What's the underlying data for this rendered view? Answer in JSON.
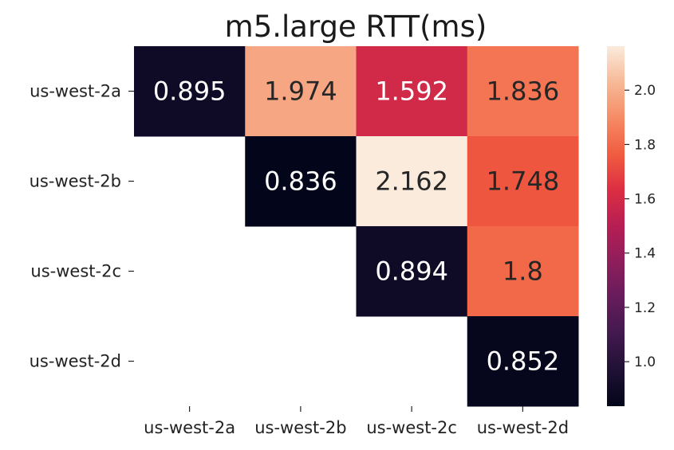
{
  "chart_data": {
    "type": "heatmap",
    "title": "m5.large RTT(ms)",
    "xlabel": "",
    "ylabel": "",
    "x_categories": [
      "us-west-2a",
      "us-west-2b",
      "us-west-2c",
      "us-west-2d"
    ],
    "y_categories": [
      "us-west-2a",
      "us-west-2b",
      "us-west-2c",
      "us-west-2d"
    ],
    "values": [
      [
        0.895,
        1.974,
        1.592,
        1.836
      ],
      [
        null,
        0.836,
        2.162,
        1.748
      ],
      [
        null,
        null,
        0.894,
        1.8
      ],
      [
        null,
        null,
        null,
        0.852
      ]
    ],
    "cell_labels": [
      [
        "0.895",
        "1.974",
        "1.592",
        "1.836"
      ],
      [
        "",
        "0.836",
        "2.162",
        "1.748"
      ],
      [
        "",
        "",
        "0.894",
        "1.8"
      ],
      [
        "",
        "",
        "",
        "0.852"
      ]
    ],
    "color_scale": {
      "colormap": "rocket",
      "vmin": 0.836,
      "vmax": 2.162,
      "ticks": [
        1.0,
        1.2,
        1.4,
        1.6,
        1.8,
        2.0
      ],
      "tick_labels": [
        "1.0",
        "1.2",
        "1.4",
        "1.6",
        "1.8",
        "2.0"
      ]
    },
    "grid": false,
    "colorbar": "right"
  }
}
